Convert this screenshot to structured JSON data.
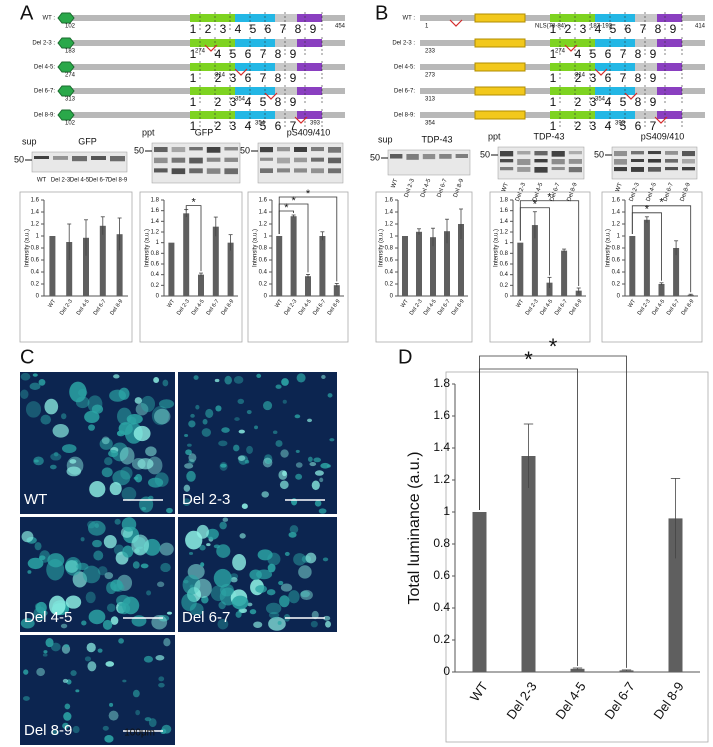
{
  "panels": [
    "A",
    "B",
    "C",
    "D"
  ],
  "diagrams": [
    {
      "highlight": [
        "4",
        "5"
      ],
      "highlight_color": "#d42a2a",
      "rows": [
        {
          "label": "WT :",
          "exons": [
            "1",
            "2",
            "3",
            "4",
            "5",
            "6",
            "7",
            "8",
            "9"
          ],
          "notes": [
            "102",
            "454"
          ]
        },
        {
          "label": "Del 2-3 :",
          "exons": [
            "1",
            "4",
            "5",
            "6",
            "7",
            "8",
            "9"
          ],
          "notes": [
            "183",
            "274"
          ]
        },
        {
          "label": "Del 4-5:",
          "exons": [
            "1",
            "2",
            "3",
            "6",
            "7",
            "8",
            "9"
          ],
          "notes": [
            "274",
            "314"
          ]
        },
        {
          "label": "Del 6-7:",
          "exons": [
            "1",
            "2",
            "3",
            "4",
            "5",
            "8",
            "9"
          ],
          "notes": [
            "313",
            "354"
          ]
        },
        {
          "label": "Del 8-9:",
          "exons": [
            "1",
            "2",
            "3",
            "4",
            "5",
            "6",
            "7"
          ],
          "notes": [
            "102",
            "354",
            "393"
          ]
        }
      ]
    },
    {
      "highlight": [
        "4",
        "5"
      ],
      "highlight_color": "#d42a2a",
      "rows": [
        {
          "label": "WT :",
          "exons": [
            "1",
            "2",
            "3",
            "4",
            "5",
            "6",
            "7",
            "8",
            "9"
          ],
          "notes": [
            "1",
            "NLS(78-84)",
            "187-192",
            "414"
          ]
        },
        {
          "label": "Del 2-3 :",
          "exons": [
            "1",
            "4",
            "5",
            "6",
            "7",
            "8",
            "9"
          ],
          "notes": [
            "233",
            "274"
          ]
        },
        {
          "label": "Del 4-5:",
          "exons": [
            "1",
            "2",
            "3",
            "6",
            "7",
            "8",
            "9"
          ],
          "notes": [
            "273",
            "314"
          ]
        },
        {
          "label": "Del 6-7:",
          "exons": [
            "1",
            "2",
            "3",
            "4",
            "5",
            "8",
            "9"
          ],
          "notes": [
            "313",
            "354"
          ]
        },
        {
          "label": "Del 8-9:",
          "exons": [
            "1",
            "2",
            "3",
            "4",
            "5",
            "6",
            "7"
          ],
          "notes": [
            "354",
            "393"
          ]
        }
      ]
    }
  ],
  "blots": [
    {
      "marker": "50",
      "fraction": "sup",
      "title": "GFP",
      "lanes": [
        "WT",
        "Del 2-3",
        "Del 4-5",
        "Del 6-7",
        "Del 8-9"
      ]
    },
    {
      "marker": "50",
      "fraction": "ppt",
      "title": "GFP"
    },
    {
      "marker": "50",
      "title": "pS409/410"
    },
    {
      "marker": "50",
      "fraction": "sup",
      "title": "TDP-43",
      "lanes": [
        "WT",
        "Del 2-3",
        "Del 4-5",
        "Del 6-7",
        "Del 8-9"
      ]
    },
    {
      "marker": "50",
      "fraction": "ppt",
      "title": "TDP-43",
      "lanes": [
        "WT",
        "Del 2-3",
        "Del 4-5",
        "Del 6-7",
        "Del 8-9"
      ]
    },
    {
      "marker": "50",
      "title": "pS409/410",
      "lanes": [
        "WT",
        "Del 2-3",
        "Del 4-5",
        "Del 6-7",
        "Del 8-9"
      ]
    }
  ],
  "micrographs": {
    "tiles": [
      "WT",
      "Del 2-3",
      "Del 4-5",
      "Del 6-7",
      "Del 8-9"
    ],
    "scale_bar": "100μm"
  },
  "chart_data": [
    {
      "type": "bar",
      "ylabel": "Intensity (a.u.)",
      "categories": [
        "WT",
        "Del 2-3",
        "Del 4-5",
        "Del 6-7",
        "Del 8-9"
      ],
      "values": [
        1.0,
        0.9,
        0.97,
        1.17,
        1.03
      ],
      "errors": [
        0.0,
        0.3,
        0.3,
        0.15,
        0.27
      ],
      "color": "#5f5f5f",
      "ylim": [
        0,
        1.6
      ],
      "yticks": [
        0,
        0.2,
        0.4,
        0.6,
        0.8,
        1,
        1.2,
        1.4,
        1.6
      ],
      "brackets": []
    },
    {
      "type": "bar",
      "ylabel": "Intensity (a.u.)",
      "categories": [
        "WT",
        "Del 2-3",
        "Del 4-5",
        "Del 6-7",
        "Del 8-9"
      ],
      "values": [
        1.0,
        1.55,
        0.4,
        1.3,
        1.0
      ],
      "errors": [
        0.0,
        0.07,
        0.03,
        0.18,
        0.15
      ],
      "color": "#5f5f5f",
      "ylim": [
        0,
        1.8
      ],
      "yticks": [
        0,
        0.2,
        0.4,
        0.6,
        0.8,
        1,
        1.2,
        1.4,
        1.6,
        1.8
      ],
      "brackets": [
        {
          "label": "*",
          "between": [
            1,
            2
          ]
        }
      ]
    },
    {
      "type": "bar",
      "ylabel": "Intensity (a.u.)",
      "categories": [
        "WT",
        "Del 2-3",
        "Del 4-5",
        "Del 6-7",
        "Del 8-9"
      ],
      "values": [
        1.0,
        1.33,
        0.33,
        1.0,
        0.18
      ],
      "errors": [
        0.0,
        0.02,
        0.03,
        0.07,
        0.03
      ],
      "color": "#5f5f5f",
      "ylim": [
        0,
        1.6
      ],
      "yticks": [
        0,
        0.2,
        0.4,
        0.6,
        0.8,
        1,
        1.2,
        1.4,
        1.6
      ],
      "brackets": [
        {
          "label": "*",
          "between": [
            0,
            1
          ]
        },
        {
          "label": "*",
          "between": [
            0,
            2
          ]
        },
        {
          "label": "*",
          "between": [
            0,
            4
          ]
        }
      ]
    },
    {
      "type": "bar",
      "ylabel": "Intensity (a.u.)",
      "categories": [
        "WT",
        "Del 2-3",
        "Del 4-5",
        "Del 6-7",
        "Del 8-9"
      ],
      "values": [
        1.0,
        1.07,
        0.98,
        1.08,
        1.2
      ],
      "errors": [
        0.0,
        0.05,
        0.15,
        0.2,
        0.25
      ],
      "color": "#5f5f5f",
      "ylim": [
        0,
        1.6
      ],
      "yticks": [
        0,
        0.2,
        0.4,
        0.6,
        0.8,
        1,
        1.2,
        1.4,
        1.6
      ],
      "brackets": []
    },
    {
      "type": "bar",
      "ylabel": "Intensity (a.u.)",
      "categories": [
        "WT",
        "Del 2-3",
        "Del 4-5",
        "Del 6-7",
        "Del 8-9"
      ],
      "values": [
        1.0,
        1.33,
        0.25,
        0.85,
        0.1
      ],
      "errors": [
        0.0,
        0.25,
        0.1,
        0.03,
        0.05
      ],
      "color": "#5f5f5f",
      "ylim": [
        0,
        1.8
      ],
      "yticks": [
        0,
        0.2,
        0.4,
        0.6,
        0.8,
        1,
        1.2,
        1.4,
        1.6,
        1.8
      ],
      "brackets": [
        {
          "label": "*",
          "between": [
            0,
            2
          ]
        },
        {
          "label": "*",
          "between": [
            0,
            4
          ]
        }
      ]
    },
    {
      "type": "bar",
      "ylabel": "Intensity (a.u.)",
      "categories": [
        "WT",
        "Del 2-3",
        "Del 4-5",
        "Del 6-7",
        "Del 8-9"
      ],
      "values": [
        1.0,
        1.27,
        0.2,
        0.8,
        0.02
      ],
      "errors": [
        0.0,
        0.05,
        0.02,
        0.12,
        0.01
      ],
      "color": "#5f5f5f",
      "ylim": [
        0,
        1.6
      ],
      "yticks": [
        0,
        0.2,
        0.4,
        0.6,
        0.8,
        1,
        1.2,
        1.4,
        1.6
      ],
      "brackets": [
        {
          "label": "*",
          "between": [
            0,
            2
          ]
        },
        {
          "label": "*",
          "between": [
            0,
            4
          ]
        }
      ]
    },
    {
      "type": "bar",
      "ylabel": "Total luminance (a.u.)",
      "categories": [
        "WT",
        "Del 2-3",
        "Del 4-5",
        "Del 6-7",
        "Del 8-9"
      ],
      "values": [
        1.0,
        1.35,
        0.02,
        0.01,
        0.96
      ],
      "errors": [
        0.0,
        0.2,
        0.005,
        0.003,
        0.25
      ],
      "color": "#5f5f5f",
      "ylim": [
        0,
        1.8
      ],
      "yticks": [
        0,
        0.2,
        0.4,
        0.6,
        0.8,
        1,
        1.2,
        1.4,
        1.6,
        1.8
      ],
      "brackets": [
        {
          "label": "*",
          "between": [
            0,
            2
          ]
        },
        {
          "label": "*",
          "between": [
            0,
            3
          ]
        }
      ]
    }
  ]
}
